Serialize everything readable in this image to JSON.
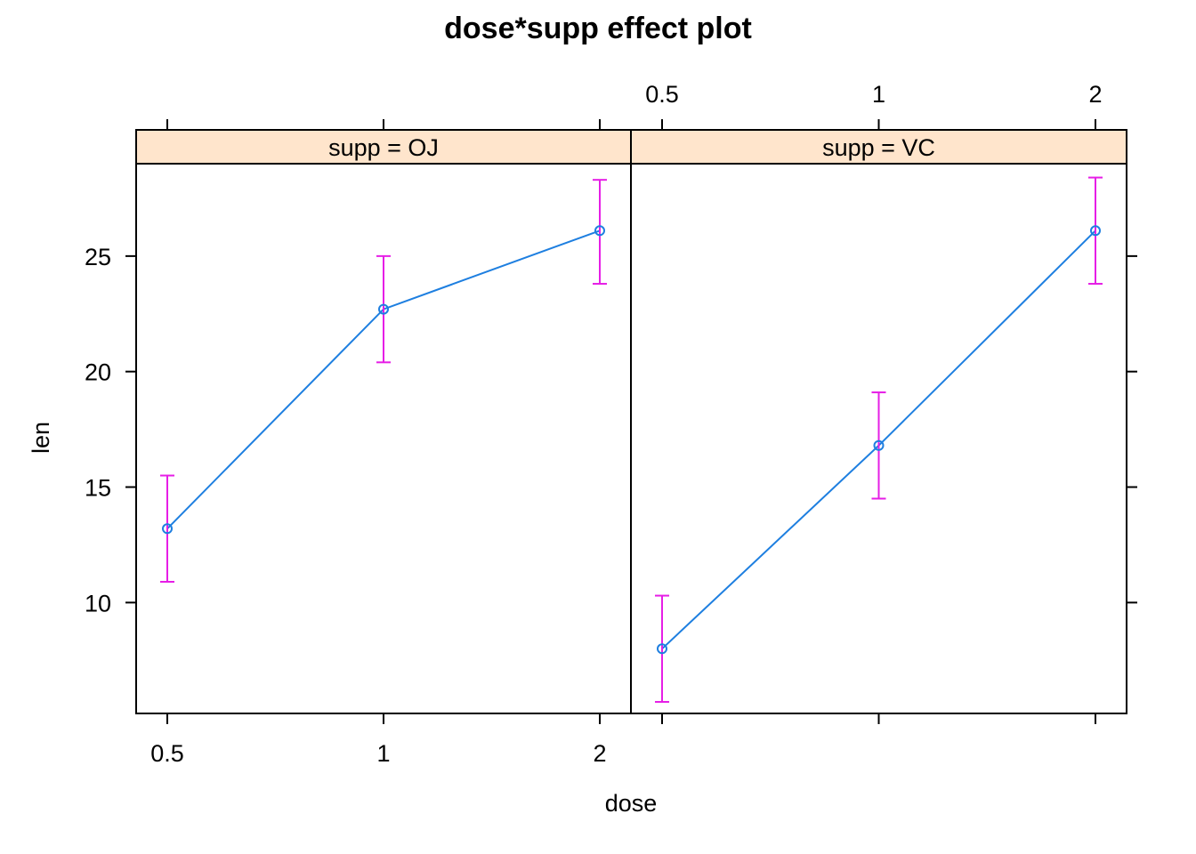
{
  "chart_data": {
    "type": "line",
    "title": "dose*supp effect plot",
    "xlabel": "dose",
    "ylabel": "len",
    "categories": [
      "0.5",
      "1",
      "2"
    ],
    "ylim": [
      5.2,
      29
    ],
    "y_ticks": [
      "10",
      "15",
      "20",
      "25"
    ],
    "grid": false,
    "panels": [
      {
        "strip": "supp = OJ",
        "series": [
          {
            "x": [
              "0.5",
              "1",
              "2"
            ],
            "values": [
              13.2,
              22.7,
              26.1
            ],
            "lower": [
              10.9,
              20.4,
              23.8
            ],
            "upper": [
              15.5,
              25.0,
              28.3
            ]
          }
        ]
      },
      {
        "strip": "supp = VC",
        "series": [
          {
            "x": [
              "0.5",
              "1",
              "2"
            ],
            "values": [
              8.0,
              16.8,
              26.1
            ],
            "lower": [
              5.7,
              14.5,
              23.8
            ],
            "upper": [
              10.3,
              19.1,
              28.4
            ]
          }
        ]
      }
    ],
    "colors": {
      "line": "#1e7fe0",
      "points": "#1e7fe0",
      "error_bars": "#e61ee6",
      "strip": "#ffe5cc"
    }
  }
}
